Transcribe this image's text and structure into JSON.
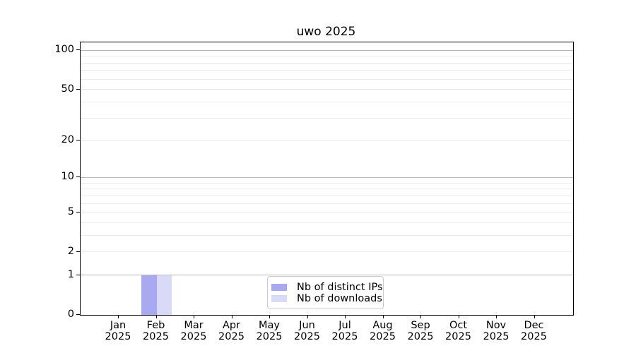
{
  "chart_data": {
    "type": "bar",
    "title": "uwo 2025",
    "categories": [
      "Jan 2025",
      "Feb 2025",
      "Mar 2025",
      "Apr 2025",
      "May 2025",
      "Jun 2025",
      "Jul 2025",
      "Aug 2025",
      "Sep 2025",
      "Oct 2025",
      "Nov 2025",
      "Dec 2025"
    ],
    "category_labels": [
      {
        "month": "Jan",
        "year": "2025"
      },
      {
        "month": "Feb",
        "year": "2025"
      },
      {
        "month": "Mar",
        "year": "2025"
      },
      {
        "month": "Apr",
        "year": "2025"
      },
      {
        "month": "May",
        "year": "2025"
      },
      {
        "month": "Jun",
        "year": "2025"
      },
      {
        "month": "Jul",
        "year": "2025"
      },
      {
        "month": "Aug",
        "year": "2025"
      },
      {
        "month": "Sep",
        "year": "2025"
      },
      {
        "month": "Oct",
        "year": "2025"
      },
      {
        "month": "Nov",
        "year": "2025"
      },
      {
        "month": "Dec",
        "year": "2025"
      }
    ],
    "series": [
      {
        "name": "Nb of distinct IPs",
        "color": "#a9a9f0",
        "values": [
          0,
          1,
          0,
          0,
          0,
          0,
          0,
          0,
          0,
          0,
          0,
          0
        ]
      },
      {
        "name": "Nb of downloads",
        "color": "#d9d9f8",
        "values": [
          0,
          1,
          0,
          0,
          0,
          0,
          0,
          0,
          0,
          0,
          0,
          0
        ]
      }
    ],
    "yscale": "log1p",
    "ylim": [
      0,
      115
    ],
    "yticks": [
      0,
      1,
      2,
      5,
      10,
      20,
      50,
      100
    ],
    "major_gridlines": [
      1,
      10,
      100
    ],
    "minor_gridlines": [
      2,
      3,
      4,
      5,
      6,
      7,
      8,
      9,
      20,
      30,
      40,
      50,
      60,
      70,
      80,
      90
    ],
    "grid": true,
    "legend_position": "lower center",
    "xlabel": "",
    "ylabel": ""
  },
  "colors": {
    "background": "#ffffff",
    "axis": "#000000",
    "text": "#000000",
    "major_grid": "#b8b8b8",
    "minor_grid": "#ececec",
    "legend_border": "#cccccc"
  }
}
